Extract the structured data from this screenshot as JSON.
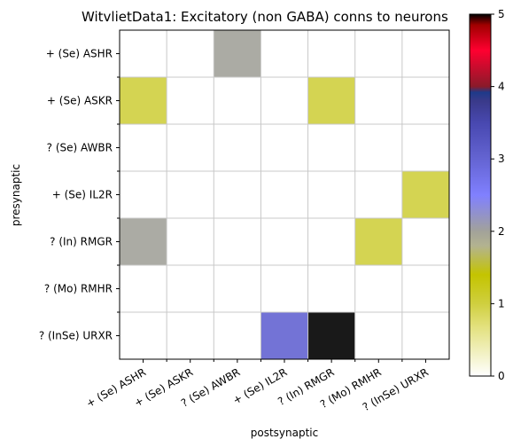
{
  "chart_data": {
    "type": "heatmap",
    "title": "WitvlietData1: Excitatory (non GABA) conns to neurons",
    "xlabel": "postsynaptic",
    "ylabel": "presynaptic",
    "presynaptic": [
      "+ (Se) ASHR",
      "+ (Se) ASKR",
      "? (Se) AWBR",
      "+ (Se) IL2R",
      "? (In) RMGR",
      "? (Mo) RMHR",
      "? (InSe) URXR"
    ],
    "postsynaptic": [
      "+ (Se) ASHR",
      "+ (Se) ASKR",
      "? (Se) AWBR",
      "+ (Se) IL2R",
      "? (In) RMGR",
      "? (Mo) RMHR",
      "? (InSe) URXR"
    ],
    "values": [
      [
        0,
        0,
        2,
        0,
        0,
        0,
        0
      ],
      [
        1,
        0,
        0,
        0,
        1,
        0,
        0
      ],
      [
        0,
        0,
        0,
        0,
        0,
        0,
        0
      ],
      [
        0,
        0,
        0,
        0,
        0,
        0,
        1
      ],
      [
        2,
        0,
        0,
        0,
        0,
        1,
        0
      ],
      [
        0,
        0,
        0,
        0,
        0,
        0,
        0
      ],
      [
        0,
        0,
        0,
        3,
        5,
        0,
        0
      ]
    ],
    "colorbar": {
      "min": 0,
      "max": 5,
      "ticks": [
        "0",
        "1",
        "2",
        "3",
        "4",
        "5"
      ],
      "stops": [
        {
          "v": 0.0,
          "c": "#ffffff"
        },
        {
          "v": 0.7,
          "c": "#e2e07a"
        },
        {
          "v": 1.0,
          "c": "#cfcf3f"
        },
        {
          "v": 1.4,
          "c": "#c4c400"
        },
        {
          "v": 1.8,
          "c": "#b3b390"
        },
        {
          "v": 2.0,
          "c": "#a2a29a"
        },
        {
          "v": 2.5,
          "c": "#8080ff"
        },
        {
          "v": 3.0,
          "c": "#6464d2"
        },
        {
          "v": 3.5,
          "c": "#4848b0"
        },
        {
          "v": 3.8,
          "c": "#3a3a8a"
        },
        {
          "v": 3.92,
          "c": "#1e3a8a"
        },
        {
          "v": 4.0,
          "c": "#8a1a2a"
        },
        {
          "v": 4.5,
          "c": "#ff0030"
        },
        {
          "v": 4.85,
          "c": "#a00000"
        },
        {
          "v": 5.0,
          "c": "#000000"
        }
      ]
    },
    "grid": true
  }
}
